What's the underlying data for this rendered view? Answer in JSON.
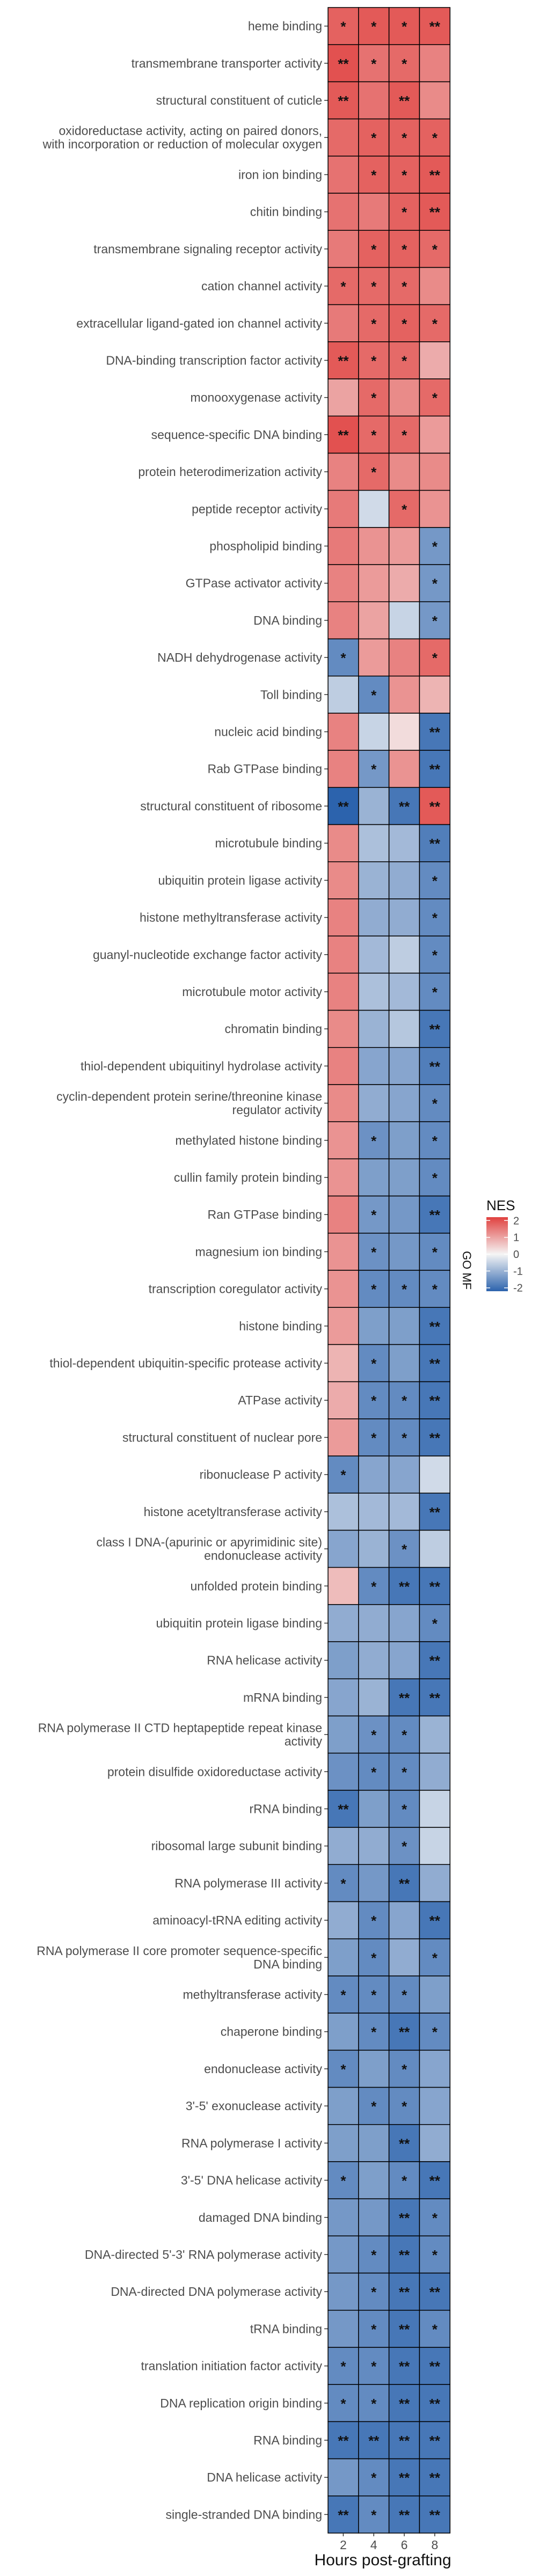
{
  "chart_data": {
    "type": "heatmap",
    "xlabel": "Hours post-grafting",
    "x": [
      "2",
      "4",
      "6",
      "8"
    ],
    "facet_label": "GO MF",
    "legend": {
      "title": "NES",
      "ticks": [
        2,
        1,
        0,
        -1,
        -2
      ],
      "colors": {
        "high": "#e0413f",
        "mid": "#f5f5f5",
        "low": "#2c63ad"
      },
      "placement": "right"
    },
    "rows": [
      {
        "term": "heme binding",
        "nes": [
          1.8,
          1.9,
          1.9,
          1.9
        ],
        "sig": [
          "*",
          "*",
          "*",
          "**"
        ]
      },
      {
        "term": "transmembrane transporter activity",
        "nes": [
          2.0,
          1.6,
          1.7,
          1.4
        ],
        "sig": [
          "**",
          "*",
          "*",
          ""
        ]
      },
      {
        "term": "structural constituent of cuticle",
        "nes": [
          1.9,
          1.6,
          1.9,
          1.3
        ],
        "sig": [
          "**",
          "",
          "**",
          ""
        ]
      },
      {
        "term": "oxidoreductase activity, acting on paired donors, with incorporation or reduction of molecular oxygen",
        "nes": [
          1.7,
          1.8,
          1.8,
          1.8
        ],
        "sig": [
          "",
          "*",
          "*",
          "*"
        ]
      },
      {
        "term": "iron ion binding",
        "nes": [
          1.6,
          1.8,
          1.8,
          1.9
        ],
        "sig": [
          "",
          "*",
          "*",
          "**"
        ]
      },
      {
        "term": "chitin binding",
        "nes": [
          1.6,
          1.5,
          1.8,
          1.9
        ],
        "sig": [
          "",
          "",
          "*",
          "**"
        ]
      },
      {
        "term": "transmembrane signaling receptor activity",
        "nes": [
          1.5,
          1.8,
          1.8,
          1.7
        ],
        "sig": [
          "",
          "*",
          "*",
          "*"
        ]
      },
      {
        "term": "cation channel activity",
        "nes": [
          1.7,
          1.7,
          1.7,
          1.3
        ],
        "sig": [
          "*",
          "*",
          "*",
          ""
        ]
      },
      {
        "term": "extracellular ligand-gated ion channel activity",
        "nes": [
          1.5,
          1.7,
          1.8,
          1.7
        ],
        "sig": [
          "",
          "*",
          "*",
          "*"
        ]
      },
      {
        "term": "DNA-binding transcription factor activity",
        "nes": [
          1.9,
          1.7,
          1.7,
          0.9
        ],
        "sig": [
          "**",
          "*",
          "*",
          ""
        ]
      },
      {
        "term": "monooxygenase activity",
        "nes": [
          1.0,
          1.7,
          1.3,
          1.7
        ],
        "sig": [
          "",
          "*",
          "",
          "*"
        ]
      },
      {
        "term": "sequence-specific DNA binding",
        "nes": [
          2.0,
          1.7,
          1.7,
          1.1
        ],
        "sig": [
          "**",
          "*",
          "*",
          ""
        ]
      },
      {
        "term": "protein heterodimerization activity",
        "nes": [
          1.4,
          1.7,
          1.3,
          1.3
        ],
        "sig": [
          "",
          "*",
          "",
          ""
        ]
      },
      {
        "term": "peptide receptor activity",
        "nes": [
          1.5,
          -0.4,
          1.7,
          1.2
        ],
        "sig": [
          "",
          "",
          "*",
          ""
        ]
      },
      {
        "term": "phospholipid binding",
        "nes": [
          1.5,
          1.2,
          1.1,
          -1.4
        ],
        "sig": [
          "",
          "",
          "",
          "*"
        ]
      },
      {
        "term": "GTPase activator activity",
        "nes": [
          1.4,
          1.1,
          0.9,
          -1.4
        ],
        "sig": [
          "",
          "",
          "",
          "*"
        ]
      },
      {
        "term": "DNA binding",
        "nes": [
          1.4,
          1.0,
          -0.5,
          -1.4
        ],
        "sig": [
          "",
          "",
          "",
          "*"
        ]
      },
      {
        "term": "NADH dehydrogenase activity",
        "nes": [
          -1.6,
          1.1,
          1.4,
          1.7
        ],
        "sig": [
          "*",
          "",
          "",
          "*"
        ]
      },
      {
        "term": "Toll binding",
        "nes": [
          -0.6,
          -1.6,
          1.2,
          0.8
        ],
        "sig": [
          "",
          "*",
          "",
          ""
        ]
      },
      {
        "term": "nucleic acid binding",
        "nes": [
          1.4,
          -0.5,
          0.3,
          -1.9
        ],
        "sig": [
          "",
          "",
          "",
          "**"
        ]
      },
      {
        "term": "Rab GTPase binding",
        "nes": [
          1.4,
          -1.4,
          1.2,
          -1.9
        ],
        "sig": [
          "",
          "*",
          "",
          "**"
        ]
      },
      {
        "term": "structural constituent of ribosome",
        "nes": [
          -2.2,
          -1.0,
          -1.9,
          1.9
        ],
        "sig": [
          "**",
          "",
          "**",
          "**"
        ]
      },
      {
        "term": "microtubule binding",
        "nes": [
          1.3,
          -0.8,
          -0.9,
          -1.8
        ],
        "sig": [
          "",
          "",
          "",
          "**"
        ]
      },
      {
        "term": "ubiquitin protein ligase activity",
        "nes": [
          1.3,
          -1.0,
          -1.1,
          -1.6
        ],
        "sig": [
          "",
          "",
          "",
          "*"
        ]
      },
      {
        "term": "histone methyltransferase activity",
        "nes": [
          1.4,
          -1.1,
          -1.1,
          -1.6
        ],
        "sig": [
          "",
          "",
          "",
          "*"
        ]
      },
      {
        "term": "guanyl-nucleotide exchange factor activity",
        "nes": [
          1.4,
          -0.9,
          -0.6,
          -1.6
        ],
        "sig": [
          "",
          "",
          "",
          "*"
        ]
      },
      {
        "term": "microtubule motor activity",
        "nes": [
          1.4,
          -0.8,
          -0.9,
          -1.6
        ],
        "sig": [
          "",
          "",
          "",
          "*"
        ]
      },
      {
        "term": "chromatin binding",
        "nes": [
          1.3,
          -1.0,
          -0.7,
          -1.9
        ],
        "sig": [
          "",
          "",
          "",
          "**"
        ]
      },
      {
        "term": "thiol-dependent ubiquitinyl hydrolase activity",
        "nes": [
          1.4,
          -1.2,
          -1.2,
          -1.8
        ],
        "sig": [
          "",
          "",
          "",
          "**"
        ]
      },
      {
        "term": "cyclin-dependent protein serine/threonine kinase regulator activity",
        "nes": [
          1.3,
          -1.1,
          -1.2,
          -1.6
        ],
        "sig": [
          "",
          "",
          "",
          "*"
        ]
      },
      {
        "term": "methylated histone binding",
        "nes": [
          1.2,
          -1.5,
          -1.3,
          -1.6
        ],
        "sig": [
          "",
          "*",
          "",
          "*"
        ]
      },
      {
        "term": "cullin family protein binding",
        "nes": [
          1.2,
          -1.3,
          -1.3,
          -1.6
        ],
        "sig": [
          "",
          "",
          "",
          "*"
        ]
      },
      {
        "term": "Ran GTPase binding",
        "nes": [
          1.4,
          -1.4,
          -1.4,
          -1.9
        ],
        "sig": [
          "",
          "*",
          "",
          "**"
        ]
      },
      {
        "term": "magnesium ion binding",
        "nes": [
          1.2,
          -1.5,
          -1.4,
          -1.6
        ],
        "sig": [
          "",
          "*",
          "",
          "*"
        ]
      },
      {
        "term": "transcription coregulator activity",
        "nes": [
          1.2,
          -1.6,
          -1.6,
          -1.6
        ],
        "sig": [
          "",
          "*",
          "*",
          "*"
        ]
      },
      {
        "term": "histone binding",
        "nes": [
          1.1,
          -1.3,
          -1.3,
          -1.9
        ],
        "sig": [
          "",
          "",
          "",
          "**"
        ]
      },
      {
        "term": "thiol-dependent ubiquitin-specific protease activity",
        "nes": [
          0.8,
          -1.6,
          -1.3,
          -1.9
        ],
        "sig": [
          "",
          "*",
          "",
          "**"
        ]
      },
      {
        "term": "ATPase activity",
        "nes": [
          0.9,
          -1.6,
          -1.6,
          -1.9
        ],
        "sig": [
          "",
          "*",
          "*",
          "**"
        ]
      },
      {
        "term": "structural constituent of nuclear pore",
        "nes": [
          1.1,
          -1.6,
          -1.6,
          -1.9
        ],
        "sig": [
          "",
          "*",
          "*",
          "**"
        ]
      },
      {
        "term": "ribonuclease P activity",
        "nes": [
          -1.6,
          -1.2,
          -1.2,
          -0.4
        ],
        "sig": [
          "*",
          "",
          "",
          ""
        ]
      },
      {
        "term": "histone acetyltransferase activity",
        "nes": [
          -0.8,
          -0.9,
          -0.9,
          -1.9
        ],
        "sig": [
          "",
          "",
          "",
          "**"
        ]
      },
      {
        "term": "class I DNA-(apurinic or apyrimidinic site) endonuclease activity",
        "nes": [
          -1.2,
          -1.0,
          -1.5,
          -0.6
        ],
        "sig": [
          "",
          "",
          "*",
          ""
        ]
      },
      {
        "term": "unfolded protein binding",
        "nes": [
          0.7,
          -1.6,
          -1.9,
          -1.9
        ],
        "sig": [
          "",
          "*",
          "**",
          "**"
        ]
      },
      {
        "term": "ubiquitin protein ligase binding",
        "nes": [
          -1.1,
          -1.1,
          -1.2,
          -1.6
        ],
        "sig": [
          "",
          "",
          "",
          "*"
        ]
      },
      {
        "term": "RNA helicase activity",
        "nes": [
          -1.3,
          -1.1,
          -1.2,
          -1.9
        ],
        "sig": [
          "",
          "",
          "",
          "**"
        ]
      },
      {
        "term": "mRNA binding",
        "nes": [
          -1.2,
          -1.0,
          -1.9,
          -1.9
        ],
        "sig": [
          "",
          "",
          "**",
          "**"
        ]
      },
      {
        "term": "RNA polymerase II CTD heptapeptide repeat kinase activity",
        "nes": [
          -1.3,
          -1.5,
          -1.6,
          -1.0
        ],
        "sig": [
          "",
          "*",
          "*",
          ""
        ]
      },
      {
        "term": "protein disulfide oxidoreductase activity",
        "nes": [
          -1.5,
          -1.6,
          -1.6,
          -1.1
        ],
        "sig": [
          "",
          "*",
          "*",
          ""
        ]
      },
      {
        "term": "rRNA binding",
        "nes": [
          -1.9,
          -1.3,
          -1.6,
          -0.5
        ],
        "sig": [
          "**",
          "",
          "*",
          ""
        ]
      },
      {
        "term": "ribosomal large subunit binding",
        "nes": [
          -1.1,
          -1.1,
          -1.5,
          -0.5
        ],
        "sig": [
          "",
          "",
          "*",
          ""
        ]
      },
      {
        "term": "RNA polymerase III activity",
        "nes": [
          -1.6,
          -1.4,
          -1.9,
          -1.1
        ],
        "sig": [
          "*",
          "",
          "**",
          ""
        ]
      },
      {
        "term": "aminoacyl-tRNA editing activity",
        "nes": [
          -1.1,
          -1.6,
          -1.2,
          -1.9
        ],
        "sig": [
          "",
          "*",
          "",
          "**"
        ]
      },
      {
        "term": "RNA polymerase II core promoter sequence-specific DNA binding",
        "nes": [
          -1.3,
          -1.6,
          -1.1,
          -1.6
        ],
        "sig": [
          "",
          "*",
          "",
          "*"
        ]
      },
      {
        "term": "methyltransferase activity",
        "nes": [
          -1.6,
          -1.6,
          -1.6,
          -1.3
        ],
        "sig": [
          "*",
          "*",
          "*",
          ""
        ]
      },
      {
        "term": "chaperone binding",
        "nes": [
          -1.3,
          -1.6,
          -1.9,
          -1.6
        ],
        "sig": [
          "",
          "*",
          "**",
          "*"
        ]
      },
      {
        "term": "endonuclease activity",
        "nes": [
          -1.6,
          -1.3,
          -1.6,
          -1.2
        ],
        "sig": [
          "*",
          "",
          "*",
          ""
        ]
      },
      {
        "term": "3'-5' exonuclease activity",
        "nes": [
          -1.3,
          -1.6,
          -1.6,
          -1.2
        ],
        "sig": [
          "",
          "*",
          "*",
          ""
        ]
      },
      {
        "term": "RNA polymerase I activity",
        "nes": [
          -1.3,
          -1.3,
          -1.9,
          -1.1
        ],
        "sig": [
          "",
          "",
          "**",
          ""
        ]
      },
      {
        "term": "3'-5' DNA helicase activity",
        "nes": [
          -1.6,
          -1.3,
          -1.6,
          -1.9
        ],
        "sig": [
          "*",
          "",
          "*",
          "**"
        ]
      },
      {
        "term": "damaged DNA binding",
        "nes": [
          -1.4,
          -1.4,
          -1.9,
          -1.6
        ],
        "sig": [
          "",
          "",
          "**",
          "*"
        ]
      },
      {
        "term": "DNA-directed 5'-3' RNA polymerase activity",
        "nes": [
          -1.4,
          -1.6,
          -1.9,
          -1.6
        ],
        "sig": [
          "",
          "*",
          "**",
          "*"
        ]
      },
      {
        "term": "DNA-directed DNA polymerase activity",
        "nes": [
          -1.4,
          -1.6,
          -1.9,
          -1.9
        ],
        "sig": [
          "",
          "*",
          "**",
          "**"
        ]
      },
      {
        "term": "tRNA binding",
        "nes": [
          -1.4,
          -1.6,
          -1.9,
          -1.6
        ],
        "sig": [
          "",
          "*",
          "**",
          "*"
        ]
      },
      {
        "term": "translation initiation factor activity",
        "nes": [
          -1.6,
          -1.6,
          -1.9,
          -1.9
        ],
        "sig": [
          "*",
          "*",
          "**",
          "**"
        ]
      },
      {
        "term": "DNA replication origin binding",
        "nes": [
          -1.6,
          -1.6,
          -1.9,
          -1.9
        ],
        "sig": [
          "*",
          "*",
          "**",
          "**"
        ]
      },
      {
        "term": "RNA binding",
        "nes": [
          -1.9,
          -1.9,
          -1.9,
          -1.9
        ],
        "sig": [
          "**",
          "**",
          "**",
          "**"
        ]
      },
      {
        "term": "DNA helicase activity",
        "nes": [
          -1.4,
          -1.6,
          -1.9,
          -1.9
        ],
        "sig": [
          "",
          "*",
          "**",
          "**"
        ]
      },
      {
        "term": "single-stranded DNA binding",
        "nes": [
          -1.9,
          -1.6,
          -1.9,
          -1.9
        ],
        "sig": [
          "**",
          "*",
          "**",
          "**"
        ]
      }
    ]
  }
}
